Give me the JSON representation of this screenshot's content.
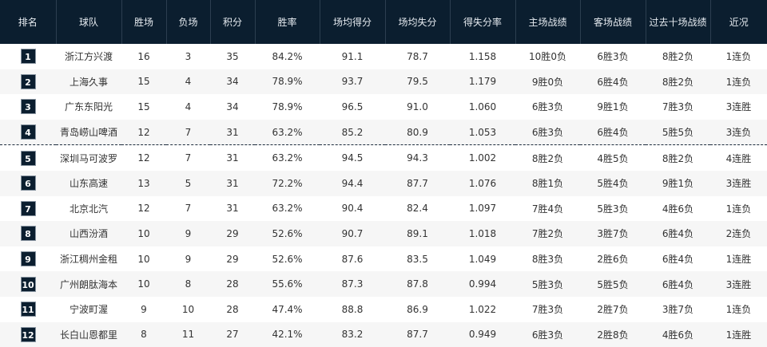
{
  "headers": [
    "排名",
    "球队",
    "胜场",
    "负场",
    "积分",
    "胜率",
    "场均得分",
    "场均失分",
    "得失分率",
    "主场战绩",
    "客场战绩",
    "过去十场战绩",
    "近况"
  ],
  "colors": {
    "header_bg": "#0b1e2f",
    "badge_bg": "#0b1e2f",
    "alt_row": "#f6f6f6"
  },
  "rows": [
    [
      "1",
      "浙江方兴渡",
      "16",
      "3",
      "35",
      "84.2%",
      "91.1",
      "78.7",
      "1.158",
      "10胜0负",
      "6胜3负",
      "8胜2负",
      "1连负"
    ],
    [
      "2",
      "上海久事",
      "15",
      "4",
      "34",
      "78.9%",
      "93.7",
      "79.5",
      "1.179",
      "9胜0负",
      "6胜4负",
      "8胜2负",
      "1连负"
    ],
    [
      "3",
      "广东东阳光",
      "15",
      "4",
      "34",
      "78.9%",
      "96.5",
      "91.0",
      "1.060",
      "6胜3负",
      "9胜1负",
      "7胜3负",
      "3连胜"
    ],
    [
      "4",
      "青岛崂山啤酒",
      "12",
      "7",
      "31",
      "63.2%",
      "85.2",
      "80.9",
      "1.053",
      "6胜3负",
      "6胜4负",
      "5胜5负",
      "3连负"
    ],
    [
      "5",
      "深圳马可波罗",
      "12",
      "7",
      "31",
      "63.2%",
      "94.5",
      "94.3",
      "1.002",
      "8胜2负",
      "4胜5负",
      "8胜2负",
      "4连胜"
    ],
    [
      "6",
      "山东高速",
      "13",
      "5",
      "31",
      "72.2%",
      "94.4",
      "87.7",
      "1.076",
      "8胜1负",
      "5胜4负",
      "9胜1负",
      "3连胜"
    ],
    [
      "7",
      "北京北汽",
      "12",
      "7",
      "31",
      "63.2%",
      "90.4",
      "82.4",
      "1.097",
      "7胜4负",
      "5胜3负",
      "4胜6负",
      "1连负"
    ],
    [
      "8",
      "山西汾酒",
      "10",
      "9",
      "29",
      "52.6%",
      "90.7",
      "89.1",
      "1.018",
      "7胜2负",
      "3胜7负",
      "6胜4负",
      "2连负"
    ],
    [
      "9",
      "浙江稠州金租",
      "10",
      "9",
      "29",
      "52.6%",
      "87.6",
      "83.5",
      "1.049",
      "8胜3负",
      "2胜6负",
      "6胜4负",
      "1连胜"
    ],
    [
      "10",
      "广州朗肽海本",
      "10",
      "8",
      "28",
      "55.6%",
      "87.3",
      "87.8",
      "0.994",
      "5胜3负",
      "5胜5负",
      "6胜4负",
      "3连胜"
    ],
    [
      "11",
      "宁波町渥",
      "9",
      "10",
      "28",
      "47.4%",
      "88.8",
      "86.9",
      "1.022",
      "7胜3负",
      "2胜7负",
      "3胜7负",
      "1连负"
    ],
    [
      "12",
      "长白山恩都里",
      "8",
      "11",
      "27",
      "42.1%",
      "83.2",
      "87.7",
      "0.949",
      "6胜3负",
      "2胜8负",
      "4胜6负",
      "1连胜"
    ]
  ]
}
